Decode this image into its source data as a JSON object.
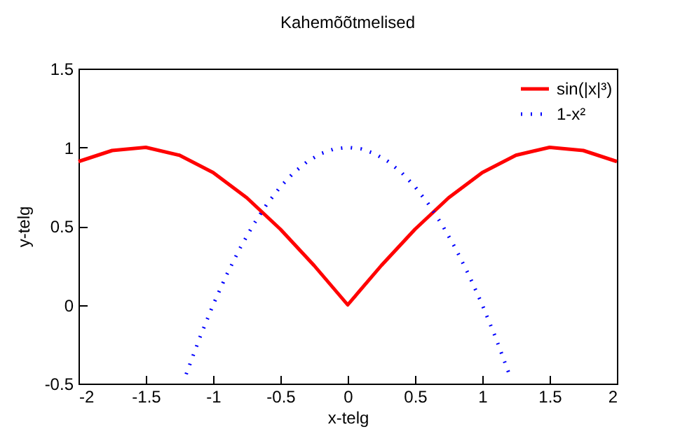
{
  "chart_data": {
    "type": "line",
    "title": "Kahemõõtmelised",
    "xlabel": "x-telg",
    "ylabel": "y-telg",
    "xlim": [
      -2,
      2
    ],
    "ylim": [
      -0.5,
      1.5
    ],
    "xticks": [
      -2,
      -1.5,
      -1,
      -0.5,
      0,
      0.5,
      1,
      1.5,
      2
    ],
    "yticks": [
      -0.5,
      0,
      0.5,
      1,
      1.5
    ],
    "legend": "top right",
    "marker": "none",
    "series": [
      {
        "name": "sin(|x|³)",
        "color": "#ff0000",
        "line_style": "solid",
        "x": [
          -2,
          -1.75,
          -1.5,
          -1.25,
          -1,
          -0.75,
          -0.5,
          -0.25,
          0,
          0.25,
          0.5,
          0.75,
          1,
          1.25,
          1.5,
          1.75,
          2
        ],
        "values": [
          0.91,
          0.98,
          1.0,
          0.95,
          0.84,
          0.68,
          0.48,
          0.25,
          0,
          0.25,
          0.48,
          0.68,
          0.84,
          0.95,
          1.0,
          0.98,
          0.91
        ]
      },
      {
        "name": "1-x²",
        "color": "#0000ff",
        "line_style": "dotted",
        "x": [
          -1.2,
          -1.1,
          -1,
          -0.9,
          -0.8,
          -0.7,
          -0.6,
          -0.5,
          -0.4,
          -0.3,
          -0.2,
          -0.1,
          0,
          0.1,
          0.2,
          0.3,
          0.4,
          0.5,
          0.6,
          0.7,
          0.8,
          0.9,
          1,
          1.1,
          1.2
        ],
        "values": [
          -0.44,
          -0.21,
          0,
          0.19,
          0.36,
          0.51,
          0.64,
          0.75,
          0.84,
          0.91,
          0.96,
          0.99,
          1,
          0.99,
          0.96,
          0.91,
          0.84,
          0.75,
          0.64,
          0.51,
          0.36,
          0.19,
          0,
          -0.21,
          -0.44
        ]
      }
    ]
  }
}
